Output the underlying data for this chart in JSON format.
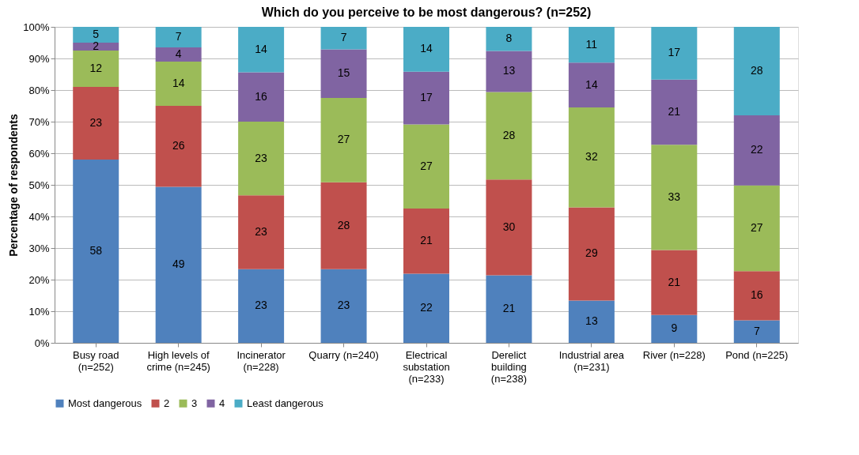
{
  "chart_data": {
    "type": "bar",
    "stacked": true,
    "title": "Which do you perceive to be most dangerous? (n=252)",
    "ylabel": "Percentage of respondents",
    "categories": [
      "Busy road\n(n=252)",
      "High levels of\ncrime (n=245)",
      "Incinerator\n(n=228)",
      "Quarry (n=240)",
      "Electrical\nsubstation\n(n=233)",
      "Derelict\nbuilding\n(n=238)",
      "Industrial area\n(n=231)",
      "River (n=228)",
      "Pond (n=225)"
    ],
    "series": [
      {
        "name": "Most dangerous",
        "color": "#4f81bd",
        "values": [
          58,
          49.4,
          23.3,
          23.3,
          21.9,
          21.4,
          13.4,
          8.8,
          7.1
        ],
        "value_labels": [
          "58",
          "49",
          "23",
          "23",
          "22",
          "21",
          "13",
          "9",
          "7"
        ]
      },
      {
        "name": "2",
        "color": "#c0504d",
        "values": [
          23,
          25.6,
          23.4,
          27.5,
          20.6,
          30.3,
          29.5,
          20.6,
          15.6
        ],
        "value_labels": [
          "23",
          "26",
          "23",
          "28",
          "21",
          "30",
          "29",
          "21",
          "16"
        ]
      },
      {
        "name": "3",
        "color": "#9bbb59",
        "values": [
          11.5,
          14,
          23.3,
          26.7,
          26.6,
          27.7,
          31.6,
          33.3,
          27.1
        ],
        "value_labels": [
          "12",
          "14",
          "23",
          "27",
          "27",
          "28",
          "32",
          "33",
          "27"
        ]
      },
      {
        "name": "4",
        "color": "#8064a2",
        "values": [
          2.5,
          4.5,
          15.6,
          15.4,
          16.7,
          13,
          14.2,
          20.6,
          22.2
        ],
        "value_labels": [
          "2",
          "4",
          "16",
          "15",
          "17",
          "13",
          "14",
          "21",
          "22"
        ]
      },
      {
        "name": "Least dangerous",
        "color": "#4bacc6",
        "values": [
          5,
          6.5,
          14.4,
          7.1,
          14.2,
          7.6,
          11.3,
          16.7,
          28
        ],
        "value_labels": [
          "5",
          "7",
          "14",
          "7",
          "14",
          "8",
          "11",
          "17",
          "28"
        ]
      }
    ],
    "ylim": [
      0,
      100
    ],
    "yticks": [
      {
        "value": 0,
        "label": "0%"
      },
      {
        "value": 10,
        "label": "10%"
      },
      {
        "value": 20,
        "label": "20%"
      },
      {
        "value": 30,
        "label": "30%"
      },
      {
        "value": 40,
        "label": "40%"
      },
      {
        "value": 50,
        "label": "50%"
      },
      {
        "value": 60,
        "label": "60%"
      },
      {
        "value": 70,
        "label": "70%"
      },
      {
        "value": 80,
        "label": "80%"
      },
      {
        "value": 90,
        "label": "90%"
      },
      {
        "value": 100,
        "label": "100%"
      }
    ],
    "grid": "y",
    "legend": "bottom"
  }
}
